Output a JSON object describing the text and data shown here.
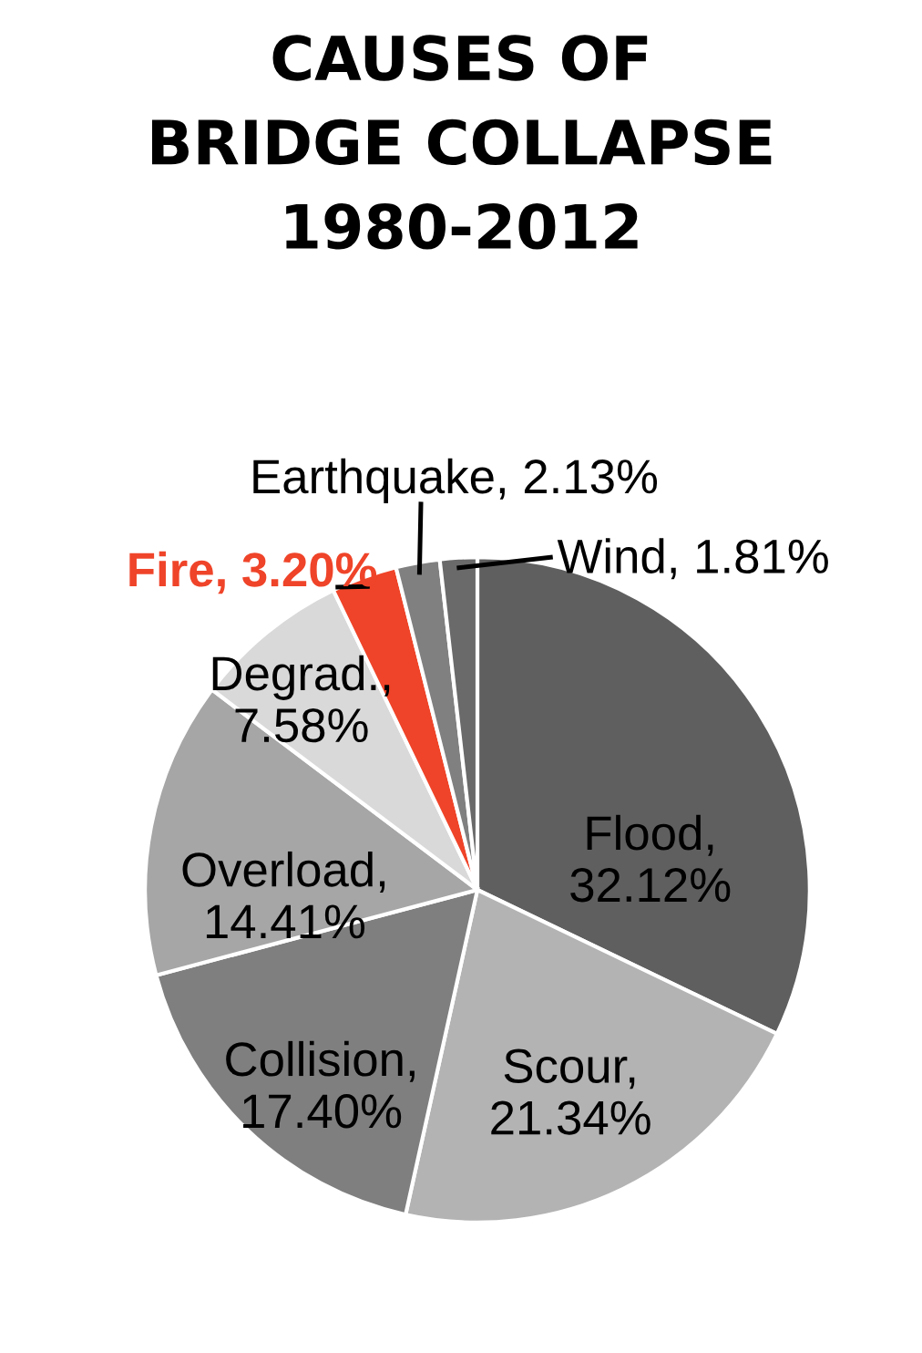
{
  "chart_data": {
    "type": "pie",
    "title": "CAUSES OF\nBRIDGE COLLAPSE\n1980-2012",
    "categories": [
      "Flood",
      "Scour",
      "Collision",
      "Overload",
      "Degrad.",
      "Fire",
      "Earthquake",
      "Wind"
    ],
    "values": [
      32.12,
      21.34,
      17.4,
      14.41,
      7.58,
      3.2,
      2.13,
      1.81
    ],
    "colors": [
      "#5f5f5f",
      "#b3b3b3",
      "#7f7f7f",
      "#a6a6a6",
      "#d9d9d9",
      "#ef4429",
      "#808080",
      "#6a6a6a"
    ],
    "value_labels": [
      ",\n32.12%",
      ",\n21.34%",
      ",\n17.40%",
      ",\n14.41%",
      ",\n7.58%",
      ", 3.20%",
      ", 2.13%",
      ", 1.81%"
    ],
    "legend": false
  }
}
